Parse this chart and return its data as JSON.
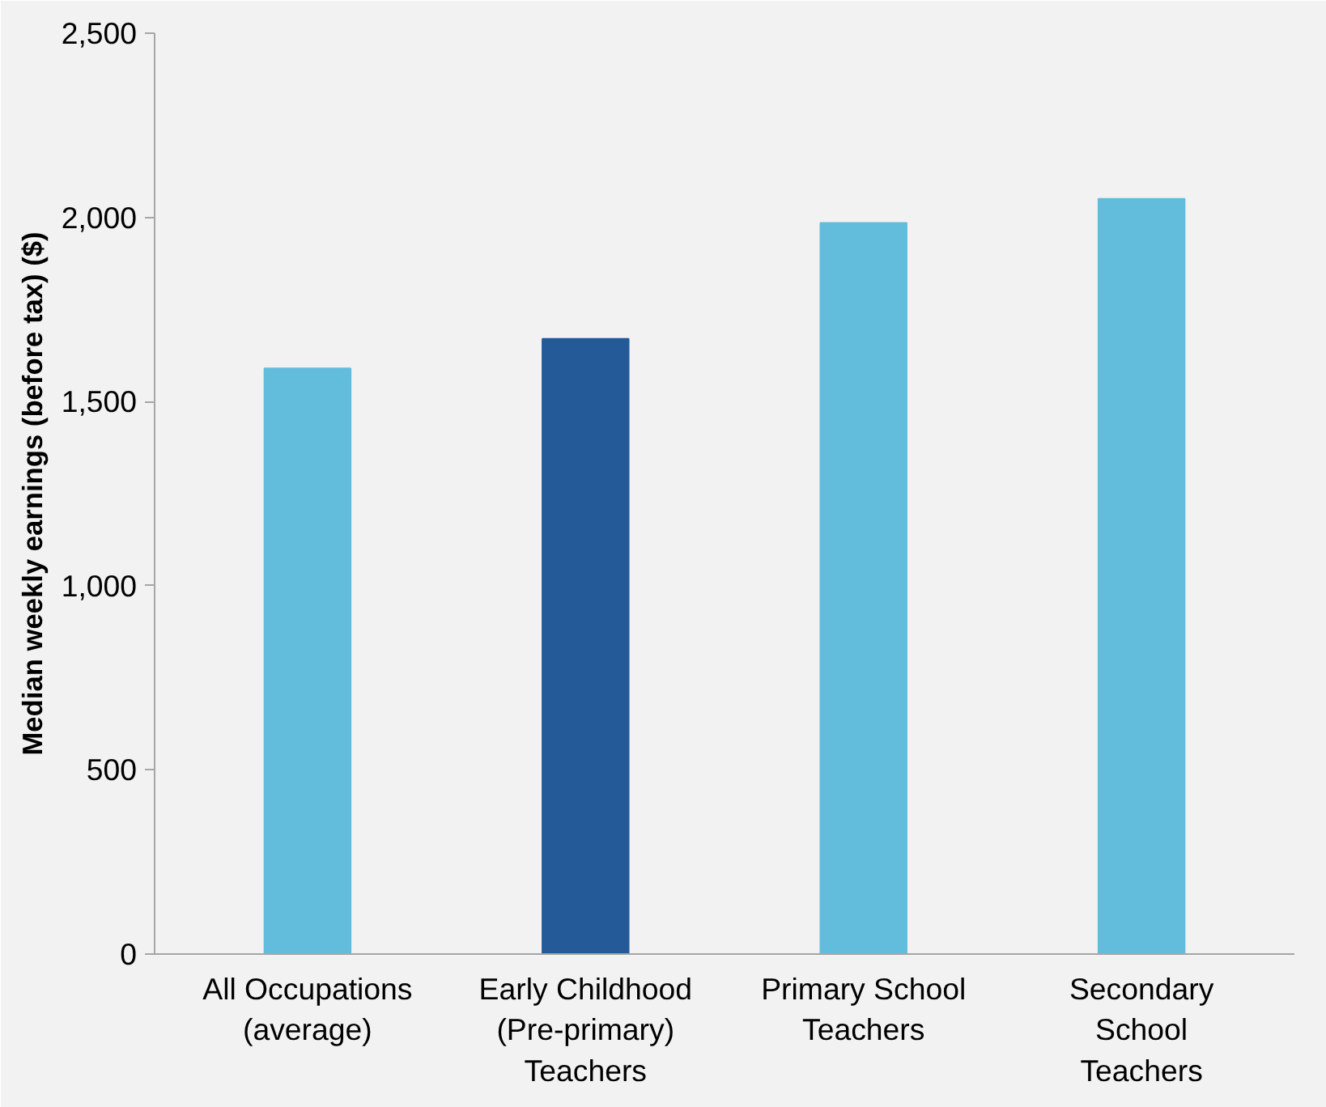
{
  "chart_data": {
    "type": "bar",
    "ylabel": "Median weekly earnings (before tax) ($)",
    "categories": [
      "All Occupations\n(average)",
      "Early Childhood\n(Pre-primary)\nTeachers",
      "Primary School\nTeachers",
      "Secondary\nSchool\nTeachers"
    ],
    "values": [
      1590,
      1670,
      1985,
      2050
    ],
    "colors": [
      "#62bcdb",
      "#255a99",
      "#62bcdb",
      "#62bcdb"
    ],
    "ylim": [
      0,
      2500
    ],
    "yticks": [
      {
        "value": 0,
        "label": "0"
      },
      {
        "value": 500,
        "label": "500"
      },
      {
        "value": 1000,
        "label": "1,000"
      },
      {
        "value": 1500,
        "label": "1,500"
      },
      {
        "value": 2000,
        "label": "2,000"
      },
      {
        "value": 2500,
        "label": "2,500"
      }
    ],
    "grid": false
  }
}
